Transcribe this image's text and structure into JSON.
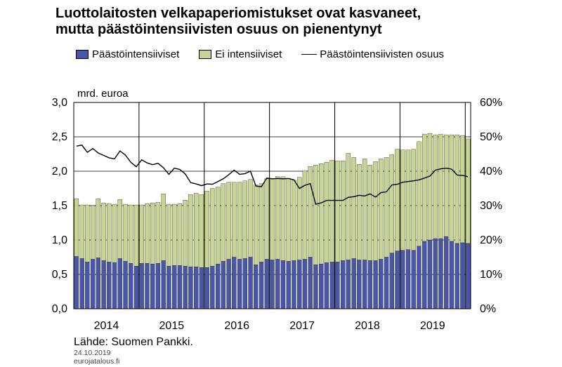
{
  "title_line1": "Luottolaitosten velkapaperiomistukset ovat kasvaneet,",
  "title_line2": "mutta päästöintensiivisten osuus on pienentynyt",
  "legend": {
    "series1": "Päästöintensiiviset",
    "series2": "Ei intensiiviset",
    "series3": "Päästöintensiivisten osuus"
  },
  "colors": {
    "intensive": "#4a56a8",
    "non_intensive": "#c6d692",
    "line": "#000000"
  },
  "source": "Lähde: Suomen Pankki.",
  "date": "24.10.2019",
  "site": "eurojatalous.fi",
  "chart_data": {
    "type": "bar",
    "stacked": true,
    "ylabel_left": "mrd. euroa",
    "ylim_left": [
      0,
      3
    ],
    "left_ticks": [
      "0,0",
      "0,5",
      "1,0",
      "1,5",
      "2,0",
      "2,5",
      "3,0"
    ],
    "ylim_right": [
      0,
      60
    ],
    "right_ticks": [
      "0%",
      "10%",
      "20%",
      "30%",
      "40%",
      "50%",
      "60%"
    ],
    "x_labels": [
      "2014",
      "2015",
      "2016",
      "2017",
      "2018",
      "2019"
    ],
    "x_start": "2014-01",
    "frequency": "monthly",
    "series": [
      {
        "name": "Päästöintensiiviset",
        "values": [
          0.76,
          0.73,
          0.68,
          0.72,
          0.74,
          0.7,
          0.68,
          0.67,
          0.73,
          0.69,
          0.66,
          0.62,
          0.66,
          0.66,
          0.65,
          0.66,
          0.7,
          0.62,
          0.63,
          0.63,
          0.62,
          0.61,
          0.61,
          0.6,
          0.6,
          0.62,
          0.65,
          0.69,
          0.72,
          0.75,
          0.72,
          0.73,
          0.75,
          0.64,
          0.68,
          0.72,
          0.71,
          0.72,
          0.7,
          0.69,
          0.7,
          0.71,
          0.72,
          0.75,
          0.64,
          0.65,
          0.67,
          0.68,
          0.68,
          0.7,
          0.71,
          0.73,
          0.71,
          0.71,
          0.7,
          0.7,
          0.72,
          0.75,
          0.81,
          0.84,
          0.85,
          0.86,
          0.85,
          0.91,
          0.98,
          1.0,
          1.02,
          1.02,
          1.05,
          0.98,
          0.95,
          0.96,
          0.95
        ]
      },
      {
        "name": "Ei intensiiviset",
        "values": [
          0.84,
          0.78,
          0.83,
          0.78,
          0.86,
          0.84,
          0.85,
          0.85,
          0.86,
          0.83,
          0.85,
          0.89,
          0.85,
          0.87,
          0.89,
          0.89,
          0.97,
          0.9,
          0.89,
          0.9,
          0.96,
          1.05,
          1.07,
          1.06,
          1.11,
          1.13,
          1.12,
          1.13,
          1.12,
          1.09,
          1.12,
          1.13,
          1.13,
          1.16,
          1.14,
          1.17,
          1.18,
          1.2,
          1.22,
          1.2,
          1.17,
          1.2,
          1.29,
          1.32,
          1.45,
          1.46,
          1.46,
          1.48,
          1.47,
          1.45,
          1.55,
          1.47,
          1.39,
          1.47,
          1.39,
          1.44,
          1.46,
          1.45,
          1.43,
          1.48,
          1.46,
          1.45,
          1.47,
          1.52,
          1.56,
          1.55,
          1.51,
          1.52,
          1.48,
          1.55,
          1.58,
          1.56,
          1.52
        ]
      }
    ],
    "share_series": {
      "name": "Päästöintensiivisten osuus",
      "values": [
        47.3,
        47.6,
        45.5,
        46.6,
        45.3,
        44.6,
        43.9,
        43.6,
        45.9,
        44.7,
        42.6,
        41.3,
        43.3,
        42.4,
        41.9,
        42.3,
        41.0,
        39.1,
        40.9,
        40.5,
        39.2,
        36.7,
        36.3,
        35.8,
        36.3,
        36.2,
        37.0,
        37.8,
        39.0,
        40.3,
        39.1,
        39.3,
        40.0,
        35.7,
        35.5,
        38.0,
        37.8,
        37.9,
        37.8,
        37.9,
        37.5,
        35.0,
        35.9,
        36.4,
        30.4,
        30.8,
        31.5,
        31.5,
        31.5,
        31.5,
        32.4,
        32.6,
        33.0,
        32.8,
        33.4,
        32.5,
        33.8,
        34.0,
        36.0,
        36.2,
        36.8,
        37.0,
        37.2,
        37.5,
        38.0,
        38.6,
        40.3,
        40.7,
        40.9,
        40.6,
        38.9,
        38.8,
        38.4
      ]
    }
  }
}
